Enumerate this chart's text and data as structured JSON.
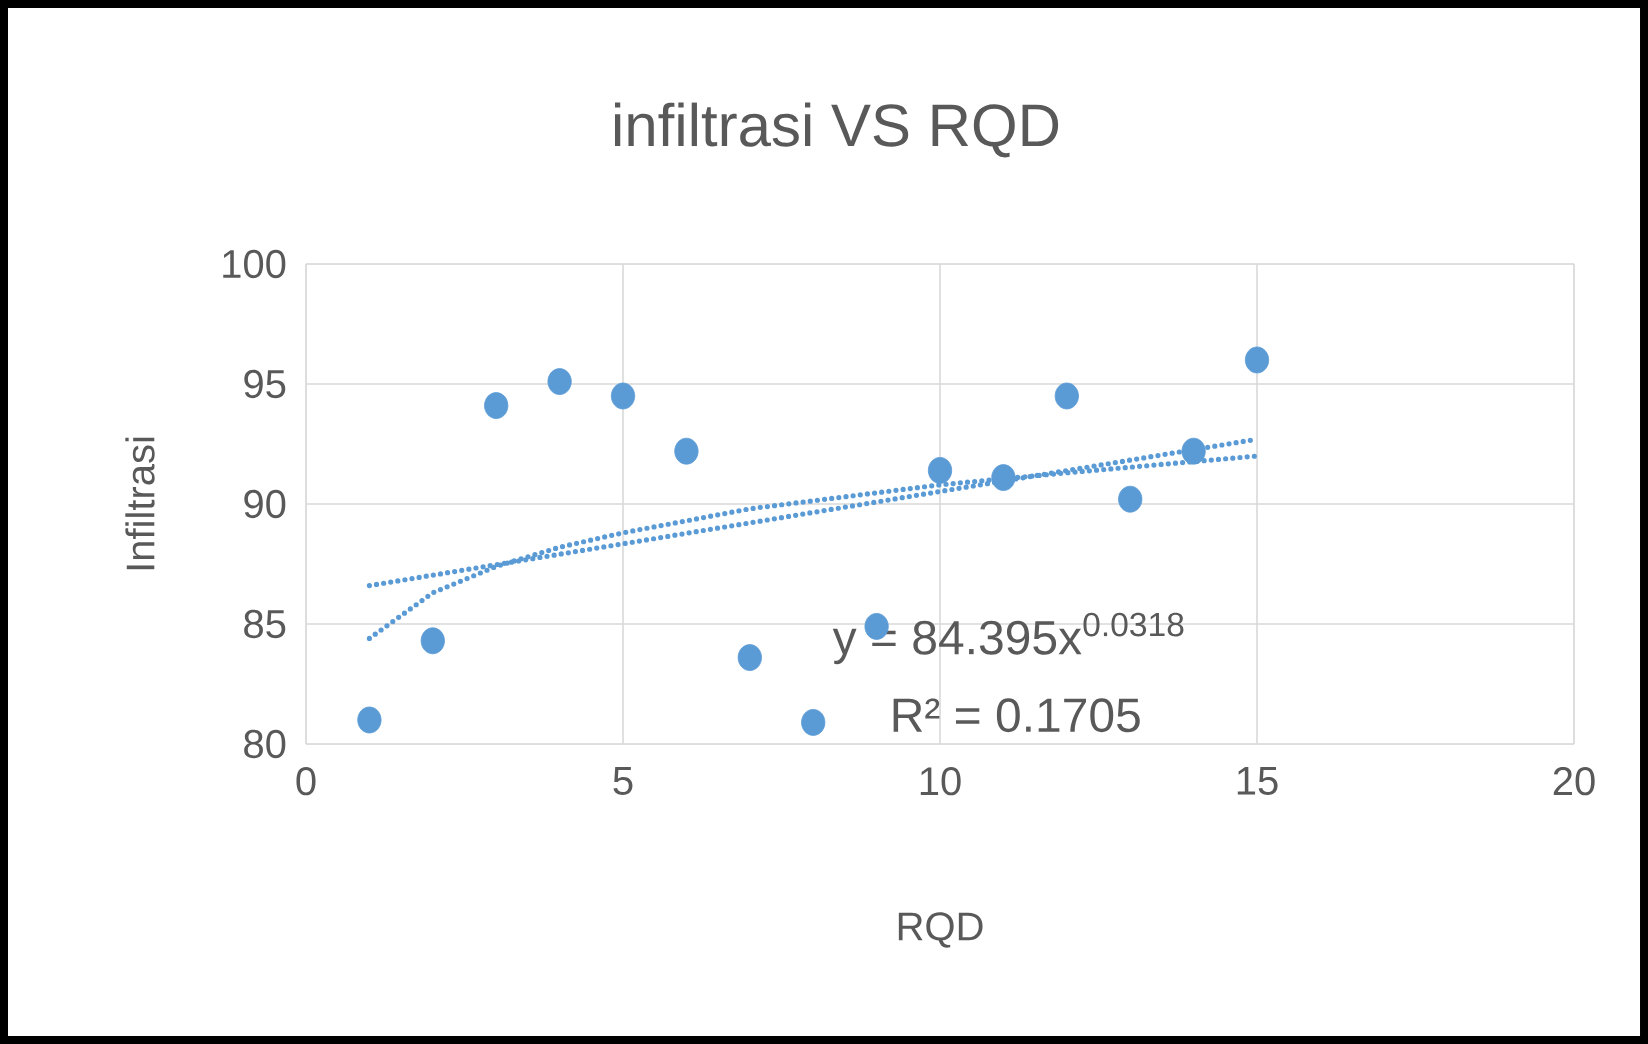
{
  "chart_data": {
    "type": "scatter",
    "title": "infiltrasi VS RQD",
    "xlabel": "RQD",
    "ylabel": "Infiltrasi",
    "xlim": [
      0,
      20
    ],
    "xticks": [
      0,
      5,
      10,
      15,
      20
    ],
    "ylim": [
      80,
      100
    ],
    "yticks": [
      80,
      85,
      90,
      95,
      100
    ],
    "grid": true,
    "series": [
      {
        "color": "#5b9bd5",
        "marker": "circle",
        "x": [
          1,
          2,
          3,
          4,
          5,
          6,
          7,
          8,
          9,
          10,
          11,
          12,
          13,
          14,
          15
        ],
        "values": [
          81.0,
          84.3,
          94.1,
          95.1,
          94.5,
          92.2,
          83.6,
          80.9,
          84.9,
          91.4,
          91.1,
          94.5,
          90.2,
          92.2,
          96.0
        ]
      },
      {
        "type": "line",
        "color": "#5b9bd5",
        "marker": "none",
        "line_style": "dotted",
        "x": [
          1,
          2,
          3,
          4,
          5,
          7,
          10,
          12,
          15
        ],
        "values": [
          84.4,
          86.3,
          87.4,
          88.2,
          88.8,
          89.8,
          90.8,
          91.3,
          92.0
        ]
      },
      {
        "type": "line",
        "color": "#5b9bd5",
        "marker": "none",
        "line_style": "dotted",
        "x": [
          1,
          15
        ],
        "values": [
          86.6,
          92.7
        ]
      }
    ],
    "annotations": [
      "y = 84.395x$^{0.0318}$",
      "R² = 0.1705"
    ]
  }
}
